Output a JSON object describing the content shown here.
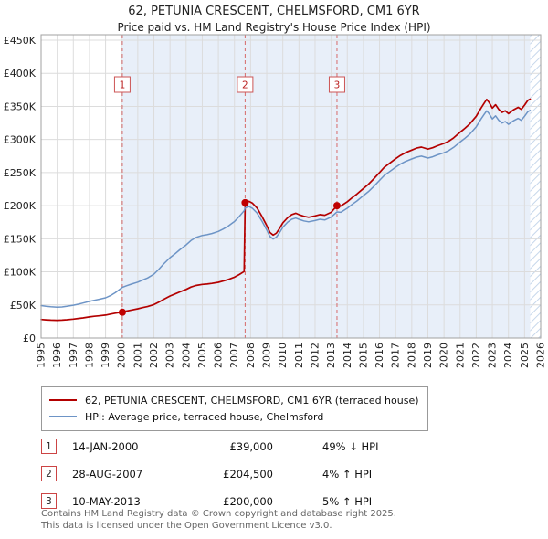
{
  "chart_data": {
    "type": "line",
    "title": "62, PETUNIA CRESCENT, CHELMSFORD, CM1 6YR",
    "subtitle": "Price paid vs. HM Land Registry's House Price Index (HPI)",
    "x_axis": {
      "range": [
        1995,
        2026
      ],
      "ticks": [
        1995,
        1996,
        1997,
        1998,
        1999,
        2000,
        2001,
        2002,
        2003,
        2004,
        2005,
        2006,
        2007,
        2008,
        2009,
        2010,
        2011,
        2012,
        2013,
        2014,
        2015,
        2016,
        2017,
        2018,
        2019,
        2020,
        2021,
        2022,
        2023,
        2024,
        2025,
        2026
      ]
    },
    "y_axis": {
      "range": [
        0,
        462000
      ],
      "tick_values": [
        0,
        50000,
        100000,
        150000,
        200000,
        250000,
        300000,
        350000,
        400000,
        450000
      ],
      "tick_labels": [
        "£0",
        "£50K",
        "£100K",
        "£150K",
        "£200K",
        "£250K",
        "£300K",
        "£350K",
        "£400K",
        "£450K"
      ]
    },
    "grid": true,
    "legend_position": "bottom",
    "colors": {
      "grid": "#dcdcdc",
      "border": "#a0a0a0",
      "sale_line": "#d66a6a",
      "sale_dot": "#c00000",
      "shaded_band": "#e8eff9",
      "hatch": "#c6d7eb"
    },
    "bands": {
      "shaded_from": 2000.04,
      "shaded_to": 2025.35,
      "hatch_from": 2025.35,
      "hatch_to": 2026
    },
    "sales": [
      {
        "label": "1",
        "year": 2000.04,
        "price": 39000
      },
      {
        "label": "2",
        "year": 2007.66,
        "price": 204500
      },
      {
        "label": "3",
        "year": 2013.36,
        "price": 200000
      }
    ],
    "series": [
      {
        "name": "62, PETUNIA CRESCENT, CHELMSFORD, CM1 6YR (terraced house)",
        "color": "#b30000",
        "width": 1.7,
        "points": [
          [
            1995.0,
            28000
          ],
          [
            1995.3,
            27500
          ],
          [
            1995.6,
            27100
          ],
          [
            1996.0,
            26800
          ],
          [
            1996.3,
            27100
          ],
          [
            1996.6,
            27600
          ],
          [
            1997.0,
            28600
          ],
          [
            1997.3,
            29500
          ],
          [
            1997.6,
            30400
          ],
          [
            1998.0,
            31900
          ],
          [
            1998.3,
            32800
          ],
          [
            1998.6,
            33500
          ],
          [
            1999.0,
            34700
          ],
          [
            1999.3,
            36200
          ],
          [
            1999.6,
            37600
          ],
          [
            2000.04,
            39000
          ],
          [
            2000.3,
            40700
          ],
          [
            2000.6,
            42200
          ],
          [
            2001.0,
            44200
          ],
          [
            2001.3,
            45900
          ],
          [
            2001.6,
            47500
          ],
          [
            2002.0,
            50500
          ],
          [
            2002.3,
            54200
          ],
          [
            2002.6,
            58400
          ],
          [
            2003.0,
            63500
          ],
          [
            2003.3,
            66500
          ],
          [
            2003.6,
            69600
          ],
          [
            2004.0,
            73500
          ],
          [
            2004.3,
            77000
          ],
          [
            2004.6,
            79400
          ],
          [
            2005.0,
            81000
          ],
          [
            2005.3,
            81600
          ],
          [
            2005.6,
            82500
          ],
          [
            2006.0,
            84200
          ],
          [
            2006.3,
            86100
          ],
          [
            2006.6,
            88300
          ],
          [
            2007.0,
            92000
          ],
          [
            2007.3,
            96000
          ],
          [
            2007.6,
            100500
          ],
          [
            2007.66,
            204500
          ],
          [
            2007.9,
            206500
          ],
          [
            2008.1,
            204000
          ],
          [
            2008.4,
            196500
          ],
          [
            2008.7,
            184000
          ],
          [
            2009.0,
            170000
          ],
          [
            2009.2,
            159500
          ],
          [
            2009.4,
            155500
          ],
          [
            2009.6,
            158500
          ],
          [
            2009.8,
            165500
          ],
          [
            2010.0,
            174000
          ],
          [
            2010.3,
            182000
          ],
          [
            2010.55,
            186500
          ],
          [
            2010.8,
            188500
          ],
          [
            2011.0,
            186500
          ],
          [
            2011.3,
            184000
          ],
          [
            2011.6,
            182500
          ],
          [
            2012.0,
            184500
          ],
          [
            2012.3,
            186500
          ],
          [
            2012.6,
            185500
          ],
          [
            2013.0,
            190000
          ],
          [
            2013.36,
            200000
          ],
          [
            2013.6,
            199500
          ],
          [
            2014.0,
            206000
          ],
          [
            2014.3,
            212000
          ],
          [
            2014.6,
            217500
          ],
          [
            2015.0,
            226000
          ],
          [
            2015.3,
            232000
          ],
          [
            2015.6,
            239500
          ],
          [
            2016.0,
            250000
          ],
          [
            2016.3,
            258000
          ],
          [
            2016.6,
            263500
          ],
          [
            2017.0,
            271000
          ],
          [
            2017.3,
            276000
          ],
          [
            2017.6,
            280000
          ],
          [
            2018.0,
            284000
          ],
          [
            2018.3,
            287000
          ],
          [
            2018.6,
            288500
          ],
          [
            2019.0,
            285500
          ],
          [
            2019.3,
            287500
          ],
          [
            2019.6,
            290500
          ],
          [
            2020.0,
            294000
          ],
          [
            2020.3,
            297500
          ],
          [
            2020.6,
            302500
          ],
          [
            2021.0,
            311000
          ],
          [
            2021.3,
            317000
          ],
          [
            2021.6,
            323500
          ],
          [
            2022.0,
            335000
          ],
          [
            2022.3,
            347500
          ],
          [
            2022.5,
            355000
          ],
          [
            2022.65,
            360500
          ],
          [
            2022.8,
            356000
          ],
          [
            2023.0,
            347500
          ],
          [
            2023.2,
            352500
          ],
          [
            2023.4,
            345500
          ],
          [
            2023.6,
            341000
          ],
          [
            2023.8,
            343500
          ],
          [
            2024.0,
            339000
          ],
          [
            2024.3,
            344500
          ],
          [
            2024.6,
            348500
          ],
          [
            2024.8,
            345500
          ],
          [
            2025.0,
            352000
          ],
          [
            2025.2,
            359000
          ],
          [
            2025.35,
            361000
          ]
        ]
      },
      {
        "name": "HPI: Average price, terraced house, Chelmsford",
        "color": "#6d94c6",
        "width": 1.5,
        "points": [
          [
            1995.0,
            49000
          ],
          [
            1995.3,
            48100
          ],
          [
            1995.6,
            47300
          ],
          [
            1996.0,
            46600
          ],
          [
            1996.3,
            47000
          ],
          [
            1996.6,
            47900
          ],
          [
            1997.0,
            49500
          ],
          [
            1997.3,
            51100
          ],
          [
            1997.6,
            52900
          ],
          [
            1998.0,
            55400
          ],
          [
            1998.3,
            57000
          ],
          [
            1998.6,
            58500
          ],
          [
            1999.0,
            60800
          ],
          [
            1999.3,
            64000
          ],
          [
            1999.6,
            68500
          ],
          [
            2000.04,
            76500
          ],
          [
            2000.3,
            79000
          ],
          [
            2000.6,
            81500
          ],
          [
            2001.0,
            84500
          ],
          [
            2001.3,
            87600
          ],
          [
            2001.6,
            90700
          ],
          [
            2002.0,
            96500
          ],
          [
            2002.3,
            103700
          ],
          [
            2002.6,
            111800
          ],
          [
            2003.0,
            121500
          ],
          [
            2003.3,
            127200
          ],
          [
            2003.6,
            133200
          ],
          [
            2004.0,
            140600
          ],
          [
            2004.3,
            147300
          ],
          [
            2004.6,
            151900
          ],
          [
            2005.0,
            155000
          ],
          [
            2005.3,
            156100
          ],
          [
            2005.6,
            157900
          ],
          [
            2006.0,
            161100
          ],
          [
            2006.3,
            164700
          ],
          [
            2006.6,
            169000
          ],
          [
            2007.0,
            176000
          ],
          [
            2007.3,
            183700
          ],
          [
            2007.6,
            192300
          ],
          [
            2007.66,
            196600
          ],
          [
            2007.9,
            198600
          ],
          [
            2008.1,
            196200
          ],
          [
            2008.4,
            189000
          ],
          [
            2008.7,
            177000
          ],
          [
            2009.0,
            163500
          ],
          [
            2009.2,
            153400
          ],
          [
            2009.4,
            149600
          ],
          [
            2009.6,
            152500
          ],
          [
            2009.8,
            159200
          ],
          [
            2010.0,
            167400
          ],
          [
            2010.3,
            175100
          ],
          [
            2010.55,
            179400
          ],
          [
            2010.8,
            181300
          ],
          [
            2011.0,
            179400
          ],
          [
            2011.3,
            177000
          ],
          [
            2011.6,
            175600
          ],
          [
            2012.0,
            177500
          ],
          [
            2012.3,
            179400
          ],
          [
            2012.6,
            178400
          ],
          [
            2013.0,
            182700
          ],
          [
            2013.36,
            190500
          ],
          [
            2013.6,
            190000
          ],
          [
            2014.0,
            196200
          ],
          [
            2014.3,
            201900
          ],
          [
            2014.6,
            207100
          ],
          [
            2015.0,
            215200
          ],
          [
            2015.3,
            221000
          ],
          [
            2015.6,
            228100
          ],
          [
            2016.0,
            238100
          ],
          [
            2016.3,
            245700
          ],
          [
            2016.6,
            251000
          ],
          [
            2017.0,
            258100
          ],
          [
            2017.3,
            262900
          ],
          [
            2017.6,
            266700
          ],
          [
            2018.0,
            270500
          ],
          [
            2018.3,
            273300
          ],
          [
            2018.6,
            274800
          ],
          [
            2019.0,
            271900
          ],
          [
            2019.3,
            273800
          ],
          [
            2019.6,
            276700
          ],
          [
            2020.0,
            280000
          ],
          [
            2020.3,
            283300
          ],
          [
            2020.6,
            288100
          ],
          [
            2021.0,
            296200
          ],
          [
            2021.3,
            301900
          ],
          [
            2021.6,
            308100
          ],
          [
            2022.0,
            319000
          ],
          [
            2022.3,
            331000
          ],
          [
            2022.5,
            338100
          ],
          [
            2022.65,
            343300
          ],
          [
            2022.8,
            339000
          ],
          [
            2023.0,
            331000
          ],
          [
            2023.2,
            335700
          ],
          [
            2023.4,
            329000
          ],
          [
            2023.6,
            324800
          ],
          [
            2023.8,
            327100
          ],
          [
            2024.0,
            322900
          ],
          [
            2024.3,
            328100
          ],
          [
            2024.6,
            331900
          ],
          [
            2024.8,
            329000
          ],
          [
            2025.0,
            335200
          ],
          [
            2025.2,
            341900
          ],
          [
            2025.35,
            343800
          ]
        ]
      }
    ]
  },
  "legend": {
    "items": [
      {
        "label": "62, PETUNIA CRESCENT, CHELMSFORD, CM1 6YR (terraced house)",
        "color": "#b30000"
      },
      {
        "label": "HPI: Average price, terraced house, Chelmsford",
        "color": "#6d94c6"
      }
    ]
  },
  "transactions": [
    {
      "num": "1",
      "date": "14-JAN-2000",
      "price": "£39,000",
      "hpi": "49% ↓ HPI"
    },
    {
      "num": "2",
      "date": "28-AUG-2007",
      "price": "£204,500",
      "hpi": "4% ↑ HPI"
    },
    {
      "num": "3",
      "date": "10-MAY-2013",
      "price": "£200,000",
      "hpi": "5% ↑ HPI"
    }
  ],
  "footer": {
    "line1": "Contains HM Land Registry data © Crown copyright and database right 2025.",
    "line2": "This data is licensed under the Open Government Licence v3.0."
  }
}
